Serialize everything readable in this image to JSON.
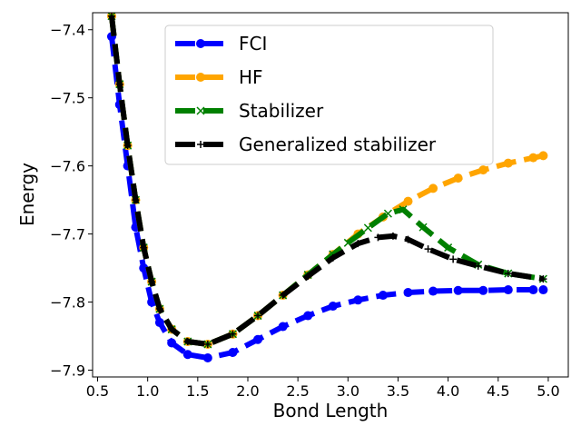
{
  "chart_data": {
    "type": "line",
    "title": "",
    "xlabel": "Bond Length",
    "ylabel": "Energy",
    "xlim": [
      0.45,
      5.2
    ],
    "ylim": [
      -7.91,
      -7.375
    ],
    "xticks": [
      0.5,
      1.0,
      1.5,
      2.0,
      2.5,
      3.0,
      3.5,
      4.0,
      4.5,
      5.0
    ],
    "xtick_labels": [
      "0.5",
      "1.0",
      "1.5",
      "2.0",
      "2.5",
      "3.0",
      "3.5",
      "4.0",
      "4.5",
      "5.0"
    ],
    "yticks": [
      -7.4,
      -7.5,
      -7.6,
      -7.7,
      -7.8,
      -7.9
    ],
    "ytick_labels": [
      "−7.4",
      "−7.5",
      "−7.6",
      "−7.7",
      "−7.8",
      "−7.9"
    ],
    "grid": false,
    "legend_position": "top-center",
    "series": [
      {
        "name": "FCI",
        "color": "#0000ff",
        "marker": "circle",
        "x": [
          0.64,
          0.72,
          0.8,
          0.88,
          0.96,
          1.04,
          1.12,
          1.24,
          1.4,
          1.6,
          1.85,
          2.1,
          2.35,
          2.6,
          2.85,
          3.1,
          3.35,
          3.6,
          3.85,
          4.1,
          4.35,
          4.6,
          4.85,
          4.95
        ],
        "y": [
          -7.41,
          -7.51,
          -7.6,
          -7.69,
          -7.75,
          -7.8,
          -7.83,
          -7.86,
          -7.877,
          -7.882,
          -7.874,
          -7.855,
          -7.836,
          -7.82,
          -7.806,
          -7.797,
          -7.79,
          -7.786,
          -7.784,
          -7.783,
          -7.783,
          -7.782,
          -7.782,
          -7.782
        ]
      },
      {
        "name": "HF",
        "color": "#ffa500",
        "marker": "circle",
        "x": [
          0.64,
          0.72,
          0.8,
          0.88,
          0.96,
          1.04,
          1.12,
          1.24,
          1.4,
          1.6,
          1.85,
          2.1,
          2.35,
          2.6,
          2.85,
          3.1,
          3.35,
          3.6,
          3.85,
          4.1,
          4.35,
          4.6,
          4.85,
          4.95
        ],
        "y": [
          -7.38,
          -7.48,
          -7.57,
          -7.65,
          -7.72,
          -7.77,
          -7.81,
          -7.84,
          -7.858,
          -7.862,
          -7.847,
          -7.82,
          -7.79,
          -7.76,
          -7.73,
          -7.7,
          -7.675,
          -7.652,
          -7.633,
          -7.618,
          -7.606,
          -7.596,
          -7.588,
          -7.585
        ]
      },
      {
        "name": "Stabilizer",
        "color": "#008000",
        "marker": "x",
        "x": [
          0.64,
          0.72,
          0.8,
          0.88,
          0.96,
          1.04,
          1.12,
          1.24,
          1.4,
          1.6,
          1.85,
          2.1,
          2.35,
          2.6,
          2.85,
          3.0,
          3.2,
          3.4,
          3.55,
          3.75,
          4.0,
          4.3,
          4.6,
          4.95
        ],
        "y": [
          -7.38,
          -7.48,
          -7.57,
          -7.65,
          -7.72,
          -7.77,
          -7.81,
          -7.84,
          -7.858,
          -7.862,
          -7.847,
          -7.82,
          -7.79,
          -7.76,
          -7.73,
          -7.713,
          -7.691,
          -7.67,
          -7.664,
          -7.69,
          -7.72,
          -7.745,
          -7.758,
          -7.766
        ]
      },
      {
        "name": "Generalized stabilizer",
        "color": "#000000",
        "marker": "plus",
        "x": [
          0.64,
          0.72,
          0.8,
          0.88,
          0.96,
          1.04,
          1.12,
          1.24,
          1.4,
          1.6,
          1.85,
          2.1,
          2.35,
          2.6,
          2.85,
          3.1,
          3.3,
          3.45,
          3.6,
          3.8,
          4.05,
          4.3,
          4.6,
          4.95
        ],
        "y": [
          -7.38,
          -7.48,
          -7.57,
          -7.65,
          -7.72,
          -7.77,
          -7.81,
          -7.84,
          -7.858,
          -7.862,
          -7.847,
          -7.82,
          -7.79,
          -7.762,
          -7.735,
          -7.714,
          -7.705,
          -7.703,
          -7.708,
          -7.722,
          -7.737,
          -7.747,
          -7.758,
          -7.766
        ]
      }
    ]
  }
}
